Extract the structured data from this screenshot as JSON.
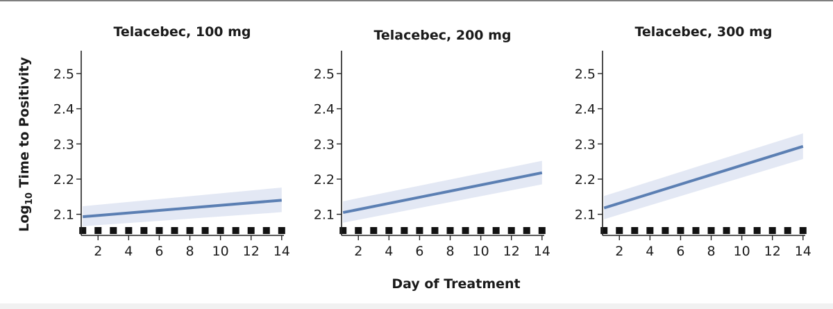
{
  "figure": {
    "ylabel_main": "Log",
    "ylabel_sub": "10",
    "ylabel_rest": " Time to Positivity",
    "xlabel": "Day of Treatment"
  },
  "colors": {
    "line": "#5b7fb3",
    "band": "#e3e8f4",
    "marker": "#111111",
    "axis": "#222222"
  },
  "chart_data": [
    {
      "type": "line",
      "title": "Telacebec, 100 mg",
      "x": [
        1,
        14
      ],
      "series": [
        {
          "values": [
            2.093,
            2.14
          ],
          "ci_lower": [
            2.066,
            2.106
          ],
          "ci_upper": [
            2.123,
            2.176
          ]
        }
      ],
      "markers_x": [
        1,
        2,
        3,
        4,
        5,
        6,
        7,
        8,
        9,
        10,
        11,
        12,
        13,
        14
      ],
      "xticks": [
        2,
        4,
        6,
        8,
        10,
        12,
        14
      ],
      "yticks": [
        2.1,
        2.2,
        2.3,
        2.4,
        2.5
      ],
      "xlim": [
        0.9,
        14.1
      ],
      "ylim": [
        2.04,
        2.565
      ]
    },
    {
      "type": "line",
      "title": "Telacebec, 200 mg",
      "x": [
        1,
        14
      ],
      "series": [
        {
          "values": [
            2.105,
            2.218
          ],
          "ci_lower": [
            2.076,
            2.185
          ],
          "ci_upper": [
            2.137,
            2.252
          ]
        }
      ],
      "markers_x": [
        1,
        2,
        3,
        4,
        5,
        6,
        7,
        8,
        9,
        10,
        11,
        12,
        13,
        14
      ],
      "xticks": [
        2,
        4,
        6,
        8,
        10,
        12,
        14
      ],
      "yticks": [
        2.1,
        2.2,
        2.3,
        2.4,
        2.5
      ],
      "xlim": [
        0.9,
        14.1
      ],
      "ylim": [
        2.04,
        2.565
      ]
    },
    {
      "type": "line",
      "title": "Telacebec, 300 mg",
      "x": [
        1,
        14
      ],
      "series": [
        {
          "values": [
            2.118,
            2.293
          ],
          "ci_lower": [
            2.086,
            2.257
          ],
          "ci_upper": [
            2.152,
            2.33
          ]
        }
      ],
      "markers_x": [
        1,
        2,
        3,
        4,
        5,
        6,
        7,
        8,
        9,
        10,
        11,
        12,
        13,
        14
      ],
      "xticks": [
        2,
        4,
        6,
        8,
        10,
        12,
        14
      ],
      "yticks": [
        2.1,
        2.2,
        2.3,
        2.4,
        2.5
      ],
      "xlim": [
        0.9,
        14.1
      ],
      "ylim": [
        2.04,
        2.565
      ]
    }
  ]
}
